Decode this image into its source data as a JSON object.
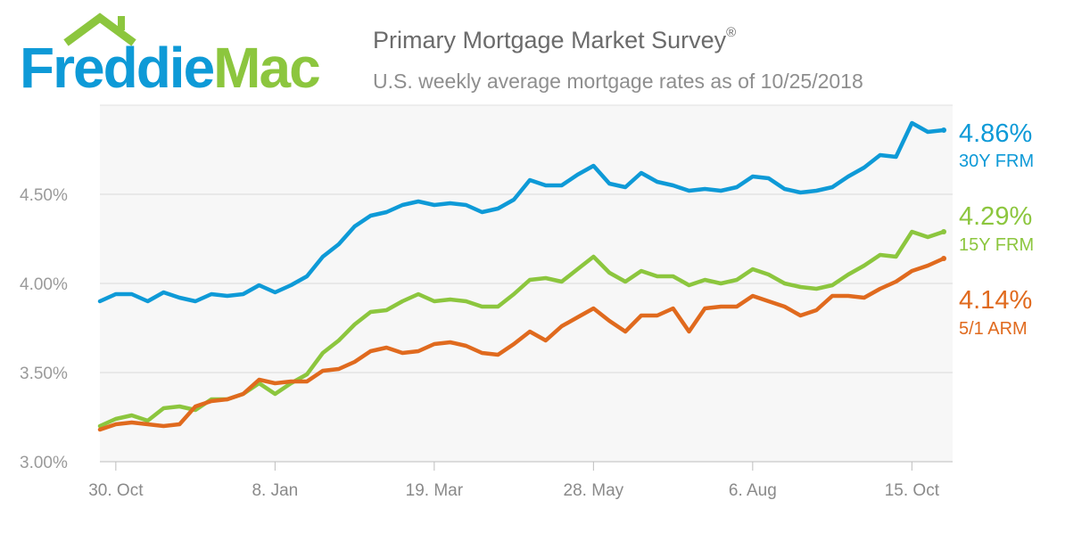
{
  "logo": {
    "word1": "Freddie",
    "word2": "Mac",
    "roof_icon": "house-roof-icon",
    "colors": {
      "blue": "#0e9ad7",
      "green": "#8cc63e"
    }
  },
  "header": {
    "title": "Primary Mortgage Market Survey",
    "title_mark": "®",
    "subtitle": "U.S. weekly average mortgage rates as of 10/25/2018"
  },
  "chart_data": {
    "type": "line",
    "title": "Primary Mortgage Market Survey",
    "subtitle": "U.S. weekly average mortgage rates as of 10/25/2018",
    "xlabel": "",
    "ylabel": "",
    "ylim": [
      3.0,
      5.0
    ],
    "yticks": [
      3.0,
      3.5,
      4.0,
      4.5
    ],
    "ytick_labels": [
      "3.00%",
      "3.50%",
      "4.00%",
      "4.50%"
    ],
    "xtick_labels": [
      "30. Oct",
      "8. Jan",
      "19. Mar",
      "28. May",
      "6. Aug",
      "15. Oct"
    ],
    "xtick_week_index": [
      1,
      11,
      21,
      31,
      41,
      51
    ],
    "grid": true,
    "legend": "right-end labels",
    "weeks": 53,
    "series": [
      {
        "name": "30Y FRM",
        "color": "#0e9ad7",
        "end_label": "4.86%",
        "values": [
          3.9,
          3.94,
          3.94,
          3.9,
          3.95,
          3.92,
          3.9,
          3.94,
          3.93,
          3.94,
          3.99,
          3.95,
          3.99,
          4.04,
          4.15,
          4.22,
          4.32,
          4.38,
          4.4,
          4.44,
          4.46,
          4.44,
          4.45,
          4.44,
          4.4,
          4.42,
          4.47,
          4.58,
          4.55,
          4.55,
          4.61,
          4.66,
          4.56,
          4.54,
          4.62,
          4.57,
          4.55,
          4.52,
          4.53,
          4.52,
          4.54,
          4.6,
          4.59,
          4.53,
          4.51,
          4.52,
          4.54,
          4.6,
          4.65,
          4.72,
          4.71,
          4.9,
          4.85,
          4.86
        ]
      },
      {
        "name": "15Y FRM",
        "color": "#8cc63e",
        "end_label": "4.29%",
        "values": [
          3.2,
          3.24,
          3.26,
          3.23,
          3.3,
          3.31,
          3.29,
          3.35,
          3.35,
          3.38,
          3.44,
          3.38,
          3.44,
          3.49,
          3.61,
          3.68,
          3.77,
          3.84,
          3.85,
          3.9,
          3.94,
          3.9,
          3.91,
          3.9,
          3.87,
          3.87,
          3.94,
          4.02,
          4.03,
          4.01,
          4.08,
          4.15,
          4.06,
          4.01,
          4.07,
          4.04,
          4.04,
          3.99,
          4.02,
          4.0,
          4.02,
          4.08,
          4.05,
          4.0,
          3.98,
          3.97,
          3.99,
          4.05,
          4.1,
          4.16,
          4.15,
          4.29,
          4.26,
          4.29
        ]
      },
      {
        "name": "5/1 ARM",
        "color": "#e06a1e",
        "end_label": "4.14%",
        "values": [
          3.18,
          3.21,
          3.22,
          3.21,
          3.2,
          3.21,
          3.31,
          3.34,
          3.35,
          3.38,
          3.46,
          3.44,
          3.45,
          3.45,
          3.51,
          3.52,
          3.56,
          3.62,
          3.64,
          3.61,
          3.62,
          3.66,
          3.67,
          3.65,
          3.61,
          3.6,
          3.66,
          3.73,
          3.68,
          3.76,
          3.81,
          3.86,
          3.79,
          3.73,
          3.82,
          3.82,
          3.86,
          3.73,
          3.86,
          3.87,
          3.87,
          3.93,
          3.9,
          3.87,
          3.82,
          3.85,
          3.93,
          3.93,
          3.92,
          3.97,
          4.01,
          4.07,
          4.1,
          4.14
        ]
      }
    ]
  }
}
